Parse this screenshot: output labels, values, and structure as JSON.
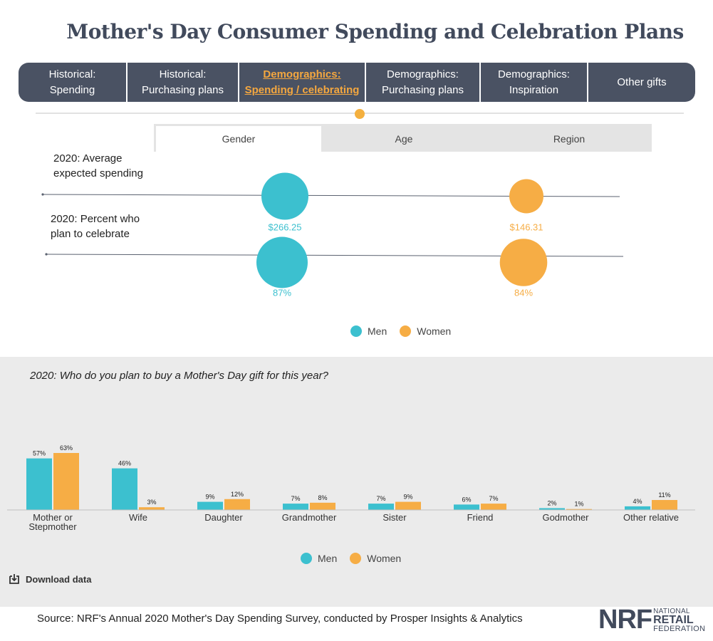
{
  "page": {
    "title": "Mother's Day Consumer Spending and Celebration Plans",
    "source": "Source: NRF's Annual 2020 Mother's Day Spending Survey, conducted by Prosper Insights & Analytics",
    "download_label": "Download data"
  },
  "nav": {
    "tabs": [
      {
        "label": "Historical:\nSpending",
        "active": false
      },
      {
        "label": "Historical:\nPurchasing plans",
        "active": false
      },
      {
        "label": "Demographics:\nSpending / celebrating",
        "active": true
      },
      {
        "label": "Demographics:\nPurchasing plans",
        "active": false
      },
      {
        "label": "Demographics:\nInspiration",
        "active": false
      },
      {
        "label": "Other gifts",
        "active": false
      }
    ]
  },
  "subtabs": [
    {
      "label": "Gender",
      "active": true
    },
    {
      "label": "Age",
      "active": false
    },
    {
      "label": "Region",
      "active": false
    }
  ],
  "colors": {
    "men": "#3cc0cf",
    "women": "#f6ad45",
    "nav_bg": "#4a5263",
    "active_tab": "#f4a73f",
    "brand": "#414a5c"
  },
  "logo": {
    "mark": "NRF",
    "line1": "NATIONAL",
    "line2": "RETAIL",
    "line3": "FEDERATION"
  },
  "chart_data": [
    {
      "type": "scatter",
      "title": "Gender",
      "legend": [
        "Men",
        "Women"
      ],
      "rows": [
        {
          "label": "2020: Average expected spending",
          "label_lines": [
            "2020: Average",
            "expected spending"
          ],
          "men": {
            "value": 266.25,
            "label": "$266.25"
          },
          "women": {
            "value": 146.31,
            "label": "$146.31"
          }
        },
        {
          "label": "2020: Percent who plan to celebrate",
          "label_lines": [
            "2020: Percent who",
            "plan to celebrate"
          ],
          "men": {
            "value": 87,
            "label": "87%"
          },
          "women": {
            "value": 84,
            "label": "84%"
          }
        }
      ]
    },
    {
      "type": "bar",
      "title": "2020: Who do you plan to buy a Mother's Day gift for this year?",
      "categories": [
        "Mother or\nStepmother",
        "Wife",
        "Daughter",
        "Grandmother",
        "Sister",
        "Friend",
        "Godmother",
        "Other relative"
      ],
      "series": [
        {
          "name": "Men",
          "values": [
            57,
            46,
            9,
            7,
            7,
            6,
            2,
            4
          ],
          "labels": [
            "57%",
            "46%",
            "9%",
            "7%",
            "7%",
            "6%",
            "2%",
            "4%"
          ]
        },
        {
          "name": "Women",
          "values": [
            63,
            3,
            12,
            8,
            9,
            7,
            1,
            11
          ],
          "labels": [
            "63%",
            "3%",
            "12%",
            "8%",
            "9%",
            "7%",
            "1%",
            "11%"
          ]
        }
      ],
      "ylim": [
        0,
        63
      ],
      "legend": [
        "Men",
        "Women"
      ]
    }
  ]
}
